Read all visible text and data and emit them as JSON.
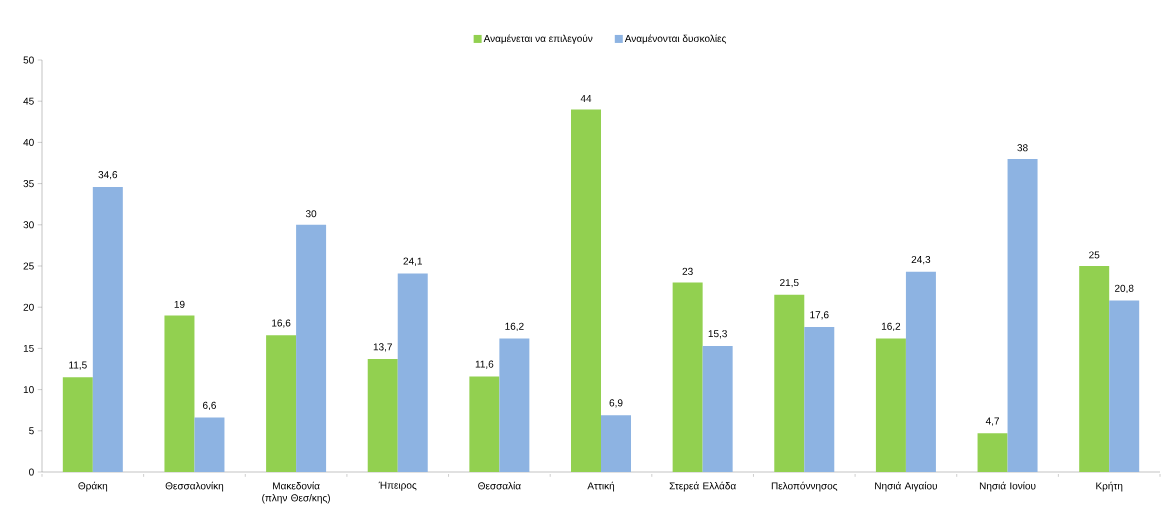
{
  "chart_data": {
    "type": "bar",
    "categories": [
      "Θράκη",
      "Θεσσαλονίκη",
      "Μακεδονία (πλην Θεσ/κης)",
      "Ήπειρος",
      "Θεσσαλία",
      "Αττική",
      "Στερεά Ελλάδα",
      "Πελοπόννησος",
      "Νησιά Αιγαίου",
      "Νησιά Ιονίου",
      "Κρήτη"
    ],
    "series": [
      {
        "name": "Αναμένεται να επιλεγούν",
        "color": "#92d050",
        "values": [
          11.5,
          19,
          16.6,
          13.7,
          11.6,
          44,
          23,
          21.5,
          16.2,
          4.7,
          25
        ],
        "value_labels": [
          "11,5",
          "19",
          "16,6",
          "13,7",
          "11,6",
          "44",
          "23",
          "21,5",
          "16,2",
          "4,7",
          "25"
        ]
      },
      {
        "name": "Αναμένονται δυσκολίες",
        "color": "#8db3e2",
        "values": [
          34.6,
          6.6,
          30,
          24.1,
          16.2,
          6.9,
          15.3,
          17.6,
          24.3,
          38,
          20.8
        ],
        "value_labels": [
          "34,6",
          "6,6",
          "30",
          "24,1",
          "16,2",
          "6,9",
          "15,3",
          "17,6",
          "24,3",
          "38",
          "20,8"
        ]
      }
    ],
    "ylim": [
      0,
      50
    ],
    "yticks": [
      0,
      5,
      10,
      15,
      20,
      25,
      30,
      35,
      40,
      45,
      50
    ],
    "legend": "top",
    "grid": false
  }
}
